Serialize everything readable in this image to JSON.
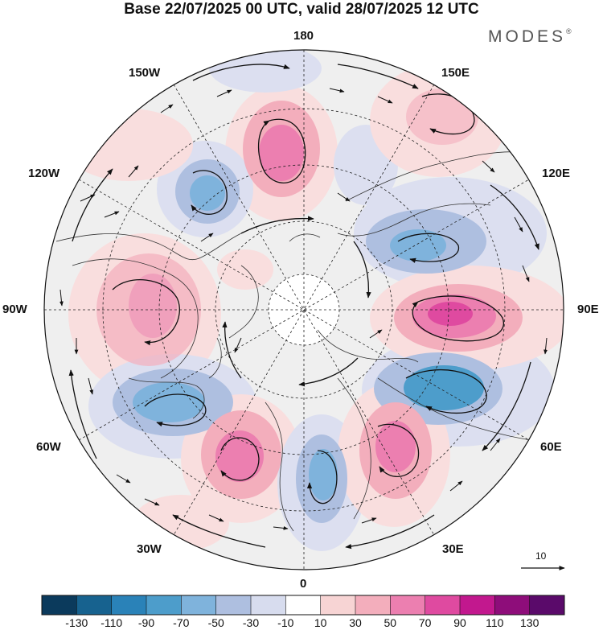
{
  "title": "Base 22/07/2025 00 UTC, valid 28/07/2025 12 UTC",
  "brand": "MODES",
  "brand_mark": "®",
  "longitude_labels": {
    "top": "180",
    "top_left": "150W",
    "top_right": "150E",
    "upper_left": "120W",
    "upper_right": "120E",
    "left": "90W",
    "right": "90E",
    "lower_left": "60W",
    "lower_right": "60E",
    "bottom_left": "30W",
    "bottom_right": "30E",
    "bottom": "0"
  },
  "reference_vector": {
    "label": "10"
  },
  "colorbar": {
    "ticks": [
      "-130",
      "-110",
      "-90",
      "-70",
      "-50",
      "-30",
      "-10",
      "10",
      "30",
      "50",
      "70",
      "90",
      "110",
      "130"
    ],
    "colors": [
      "#0b3a5c",
      "#17628f",
      "#2a82b8",
      "#4d9dcb",
      "#7fb3dc",
      "#aebfe0",
      "#d7dcee",
      "#ffffff",
      "#f7d4d4",
      "#f3aebc",
      "#ec7fb0",
      "#df4aa0",
      "#c2188e",
      "#8e0d7a",
      "#5a0a6a"
    ]
  },
  "anomaly_colors": {
    "neg_weak": "#dcdff0",
    "neg_mid": "#aebfe0",
    "neg_strong": "#7fb3dc",
    "neg_core": "#4d9dcb",
    "pos_weak": "#f9dede",
    "pos_mid": "#f3aebc",
    "pos_strong": "#ec7fb0",
    "pos_core": "#df4aa0",
    "neutral": "#efefef"
  }
}
